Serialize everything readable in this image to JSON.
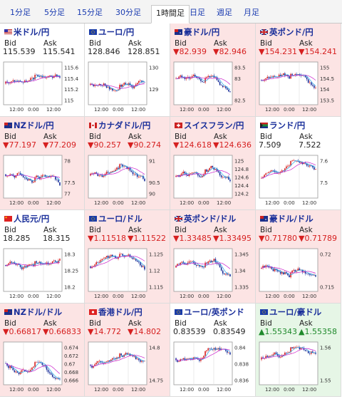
{
  "tabs": [
    {
      "label": "1分足",
      "active": false
    },
    {
      "label": "5分足",
      "active": false
    },
    {
      "label": "15分足",
      "active": false
    },
    {
      "label": "30分足",
      "active": false
    },
    {
      "label": "1時間足",
      "active": true
    },
    {
      "label": "日足",
      "active": false
    },
    {
      "label": "週足",
      "active": false
    },
    {
      "label": "月足",
      "active": false
    }
  ],
  "labels": {
    "bid": "Bid",
    "ask": "Ask"
  },
  "colors": {
    "down_bg": "#fce4e4",
    "up_bg": "#e6f6e6",
    "flat_bg": "#ffffff",
    "down_text": "#d62020",
    "up_text": "#1f8a2c",
    "candle_up": "#d62020",
    "candle_down": "#1a2f9a",
    "ma_short": "#22a4e6",
    "ma_long": "#cc22cc"
  },
  "pairs": [
    {
      "name": "米ドル/円",
      "bid": "115.539",
      "ask": "115.541",
      "trend": "flat",
      "flag": "us",
      "yticks": [
        "115.6",
        "115.4",
        "115.2",
        "115"
      ],
      "xticks": [
        "12:00",
        "0:00",
        "12:00"
      ]
    },
    {
      "name": "ユーロ/円",
      "bid": "128.846",
      "ask": "128.851",
      "trend": "flat",
      "flag": "eu",
      "yticks": [
        "130",
        "",
        "129",
        ""
      ],
      "xticks": [
        "12:00",
        "0:00",
        "12:00"
      ]
    },
    {
      "name": "豪ドル/円",
      "bid": "▼82.939",
      "ask": "▼82.946",
      "trend": "down",
      "flag": "au",
      "yticks": [
        "83.5",
        "83",
        "",
        "82.5"
      ],
      "xticks": [
        "12:00",
        "0:00",
        "12:00"
      ]
    },
    {
      "name": "英ポンド/円",
      "bid": "▼154.231",
      "ask": "▼154.241",
      "trend": "down",
      "flag": "uk",
      "yticks": [
        "155",
        "154.5",
        "154",
        "153.5"
      ],
      "xticks": [
        "12:00",
        "0:00",
        "12:00"
      ]
    },
    {
      "name": "NZドル/円",
      "bid": "▼77.197",
      "ask": "▼77.209",
      "trend": "down",
      "flag": "nz",
      "yticks": [
        "78",
        "",
        "77.5",
        "77"
      ],
      "xticks": [
        "12:00",
        "0:00",
        "12:00"
      ]
    },
    {
      "name": "カナダドル/円",
      "bid": "▼90.257",
      "ask": "▼90.274",
      "trend": "down",
      "flag": "ca",
      "yticks": [
        "91",
        "",
        "90.5",
        "90"
      ],
      "xticks": [
        "12:00",
        "0:00",
        "12:00"
      ]
    },
    {
      "name": "スイスフラン/円",
      "bid": "▼124.618",
      "ask": "▼124.636",
      "trend": "down",
      "flag": "ch",
      "yticks": [
        "125",
        "124.8",
        "124.6",
        "124.4",
        "124.2"
      ],
      "xticks": [
        "12:00",
        "0:00",
        "12:00"
      ]
    },
    {
      "name": "ランド/円",
      "bid": "7.509",
      "ask": "7.522",
      "trend": "flat",
      "flag": "za",
      "yticks": [
        "7.6",
        "",
        "7.5",
        ""
      ],
      "xticks": [
        "12:00",
        "0:00",
        "12:00"
      ]
    },
    {
      "name": "人民元/円",
      "bid": "18.285",
      "ask": "18.315",
      "trend": "flat",
      "flag": "cn",
      "yticks": [
        "18.3",
        "18.25",
        "18.2"
      ],
      "xticks": [
        "12:00",
        "0:00",
        "12:00"
      ]
    },
    {
      "name": "ユーロ/ドル",
      "bid": "▼1.11518",
      "ask": "▼1.11522",
      "trend": "down",
      "flag": "eu",
      "yticks": [
        "1.125",
        "1.12",
        "1.115"
      ],
      "xticks": [
        "12:00",
        "0:00",
        "12:00"
      ]
    },
    {
      "name": "英ポンド/ドル",
      "bid": "▼1.33485",
      "ask": "▼1.33495",
      "trend": "down",
      "flag": "uk",
      "yticks": [
        "1.345",
        "1.34",
        "1.335"
      ],
      "xticks": [
        "12:00",
        "0:00",
        "12:00"
      ]
    },
    {
      "name": "豪ドル/ドル",
      "bid": "▼0.71780",
      "ask": "▼0.71789",
      "trend": "down",
      "flag": "au",
      "yticks": [
        "0.72",
        "0.715"
      ],
      "xticks": [
        "12:00",
        "0:00",
        "12:00"
      ]
    },
    {
      "name": "NZドル/ドル",
      "bid": "▼0.66817",
      "ask": "▼0.66833",
      "trend": "down",
      "flag": "nz",
      "yticks": [
        "0.674",
        "0.672",
        "0.67",
        "0.668",
        "0.666"
      ],
      "xticks": [
        "12:00",
        "0:00",
        "12:00"
      ]
    },
    {
      "name": "香港ドル/円",
      "bid": "▼14.772",
      "ask": "▼14.802",
      "trend": "down",
      "flag": "hk",
      "yticks": [
        "14.8",
        "14.75"
      ],
      "xticks": [
        "12:00",
        "0:00",
        "12:00"
      ]
    },
    {
      "name": "ユーロ/英ポンド",
      "bid": "0.83539",
      "ask": "0.83549",
      "trend": "flat",
      "flag": "eu",
      "yticks": [
        "0.84",
        "0.838",
        "0.836"
      ],
      "xticks": [
        "12:00",
        "0:00",
        "12:00"
      ]
    },
    {
      "name": "ユーロ/豪ドル",
      "bid": "▲1.55343",
      "ask": "▲1.55358",
      "trend": "up",
      "flag": "eu",
      "yticks": [
        "1.56",
        "1.55"
      ],
      "xticks": [
        "12:00",
        "0:00",
        "12:00"
      ]
    }
  ]
}
